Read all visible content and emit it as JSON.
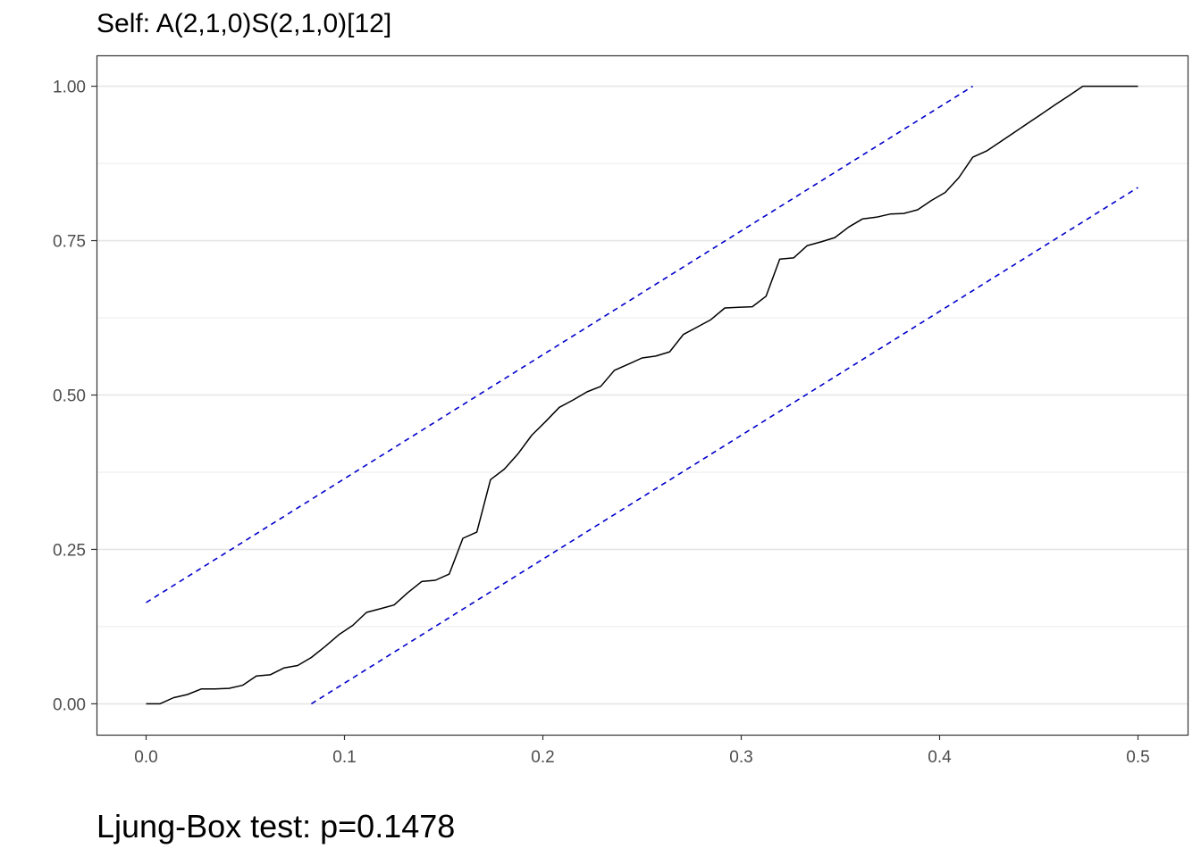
{
  "title": "Self: A(2,1,0)S(2,1,0)[12]",
  "caption": "Ljung-Box test: p=0.1478",
  "chart_data": {
    "type": "line",
    "title": "Self: A(2,1,0)S(2,1,0)[12]",
    "xlabel": "",
    "ylabel": "",
    "xlim": [
      -0.025,
      0.525
    ],
    "ylim": [
      -0.05,
      1.05
    ],
    "x_ticks": [
      0.0,
      0.1,
      0.2,
      0.3,
      0.4,
      0.5
    ],
    "x_tick_labels": [
      "0.0",
      "0.1",
      "0.2",
      "0.3",
      "0.4",
      "0.5"
    ],
    "y_ticks": [
      0.0,
      0.25,
      0.5,
      0.75,
      1.0
    ],
    "y_tick_labels": [
      "0.00",
      "0.25",
      "0.50",
      "0.75",
      "1.00"
    ],
    "grid": true,
    "series": [
      {
        "style": "solid",
        "color": "#000000",
        "x": [
          0.0,
          0.0069,
          0.0139,
          0.0208,
          0.0278,
          0.0347,
          0.0417,
          0.0486,
          0.0556,
          0.0625,
          0.0694,
          0.0764,
          0.0833,
          0.0903,
          0.0972,
          0.1042,
          0.1111,
          0.1181,
          0.125,
          0.1319,
          0.1389,
          0.1458,
          0.1528,
          0.1597,
          0.1667,
          0.1736,
          0.1806,
          0.1875,
          0.1944,
          0.2014,
          0.2083,
          0.2153,
          0.2222,
          0.2292,
          0.2361,
          0.2431,
          0.25,
          0.2569,
          0.2639,
          0.2708,
          0.2778,
          0.2847,
          0.2917,
          0.2986,
          0.3056,
          0.3125,
          0.3194,
          0.3264,
          0.3333,
          0.3403,
          0.3472,
          0.3542,
          0.3611,
          0.3681,
          0.375,
          0.3819,
          0.3889,
          0.3958,
          0.4028,
          0.4097,
          0.4167,
          0.4236,
          0.4306,
          0.4375,
          0.4444,
          0.4514,
          0.4583,
          0.4653,
          0.4722,
          0.4792,
          0.4861,
          0.4931,
          0.5
        ],
        "y": [
          0.0,
          0.0,
          0.01,
          0.015,
          0.024,
          0.024,
          0.025,
          0.03,
          0.045,
          0.047,
          0.058,
          0.062,
          0.075,
          0.093,
          0.112,
          0.127,
          0.148,
          0.154,
          0.16,
          0.18,
          0.198,
          0.2,
          0.21,
          0.268,
          0.278,
          0.363,
          0.38,
          0.405,
          0.435,
          0.457,
          0.48,
          0.492,
          0.505,
          0.514,
          0.54,
          0.55,
          0.56,
          0.563,
          0.57,
          0.598,
          0.61,
          0.622,
          0.641,
          0.642,
          0.643,
          0.66,
          0.72,
          0.722,
          0.742,
          0.748,
          0.755,
          0.772,
          0.785,
          0.788,
          0.793,
          0.794,
          0.8,
          0.815,
          0.828,
          0.852,
          0.885,
          0.895,
          0.91,
          0.925,
          0.94,
          0.955,
          0.97,
          0.985,
          1.0,
          1.0,
          1.0,
          1.0,
          1.0
        ]
      },
      {
        "style": "dashed",
        "color": "#0000cc",
        "x": [
          0.0,
          0.4167
        ],
        "y": [
          0.164,
          1.0
        ]
      },
      {
        "style": "dashed",
        "color": "#0000cc",
        "x": [
          0.0833,
          0.5
        ],
        "y": [
          0.0,
          0.836
        ]
      }
    ]
  }
}
